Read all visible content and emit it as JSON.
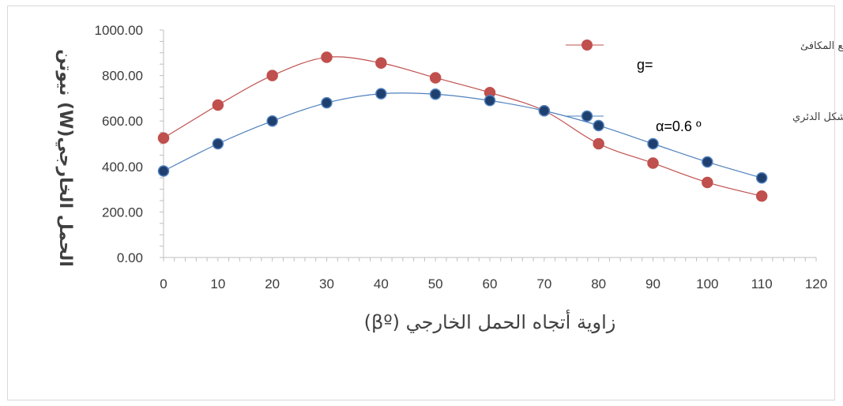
{
  "chart_data": {
    "type": "line",
    "xlabel": "زاوية أتجاه الحمل الخارجي (βº)",
    "ylabel": "الحمل الخارجي(W) نيوتن",
    "xlim": [
      0,
      120
    ],
    "ylim": [
      0,
      1000
    ],
    "x_ticks": [
      0,
      10,
      20,
      30,
      40,
      50,
      60,
      70,
      80,
      90,
      100,
      110,
      120
    ],
    "y_ticks": [
      0,
      200,
      400,
      600,
      800,
      1000
    ],
    "y_tick_labels": [
      "0.00",
      "200.00",
      "400.00",
      "600.00",
      "800.00",
      "1000.00"
    ],
    "grid": false,
    "legend_position": "top-right",
    "series": [
      {
        "name": "الوسائد ذات شكل القطع المكافئ",
        "color": "#c0504d",
        "marker_fill": "#c0504d",
        "x": [
          0,
          10,
          20,
          30,
          40,
          50,
          60,
          70,
          80,
          90,
          100,
          110
        ],
        "y": [
          525,
          670,
          800,
          880,
          855,
          790,
          725,
          645,
          500,
          415,
          330,
          270
        ]
      },
      {
        "name": "وسائد ذات شكل الدئري",
        "color": "#4f81bd",
        "marker_fill": "#1f3f6e",
        "x": [
          0,
          10,
          20,
          30,
          40,
          50,
          60,
          70,
          80,
          90,
          100,
          110
        ],
        "y": [
          380,
          500,
          600,
          680,
          720,
          718,
          690,
          645,
          580,
          500,
          420,
          350
        ]
      }
    ],
    "annotations": [
      "g=",
      "α=0.6 º"
    ]
  }
}
